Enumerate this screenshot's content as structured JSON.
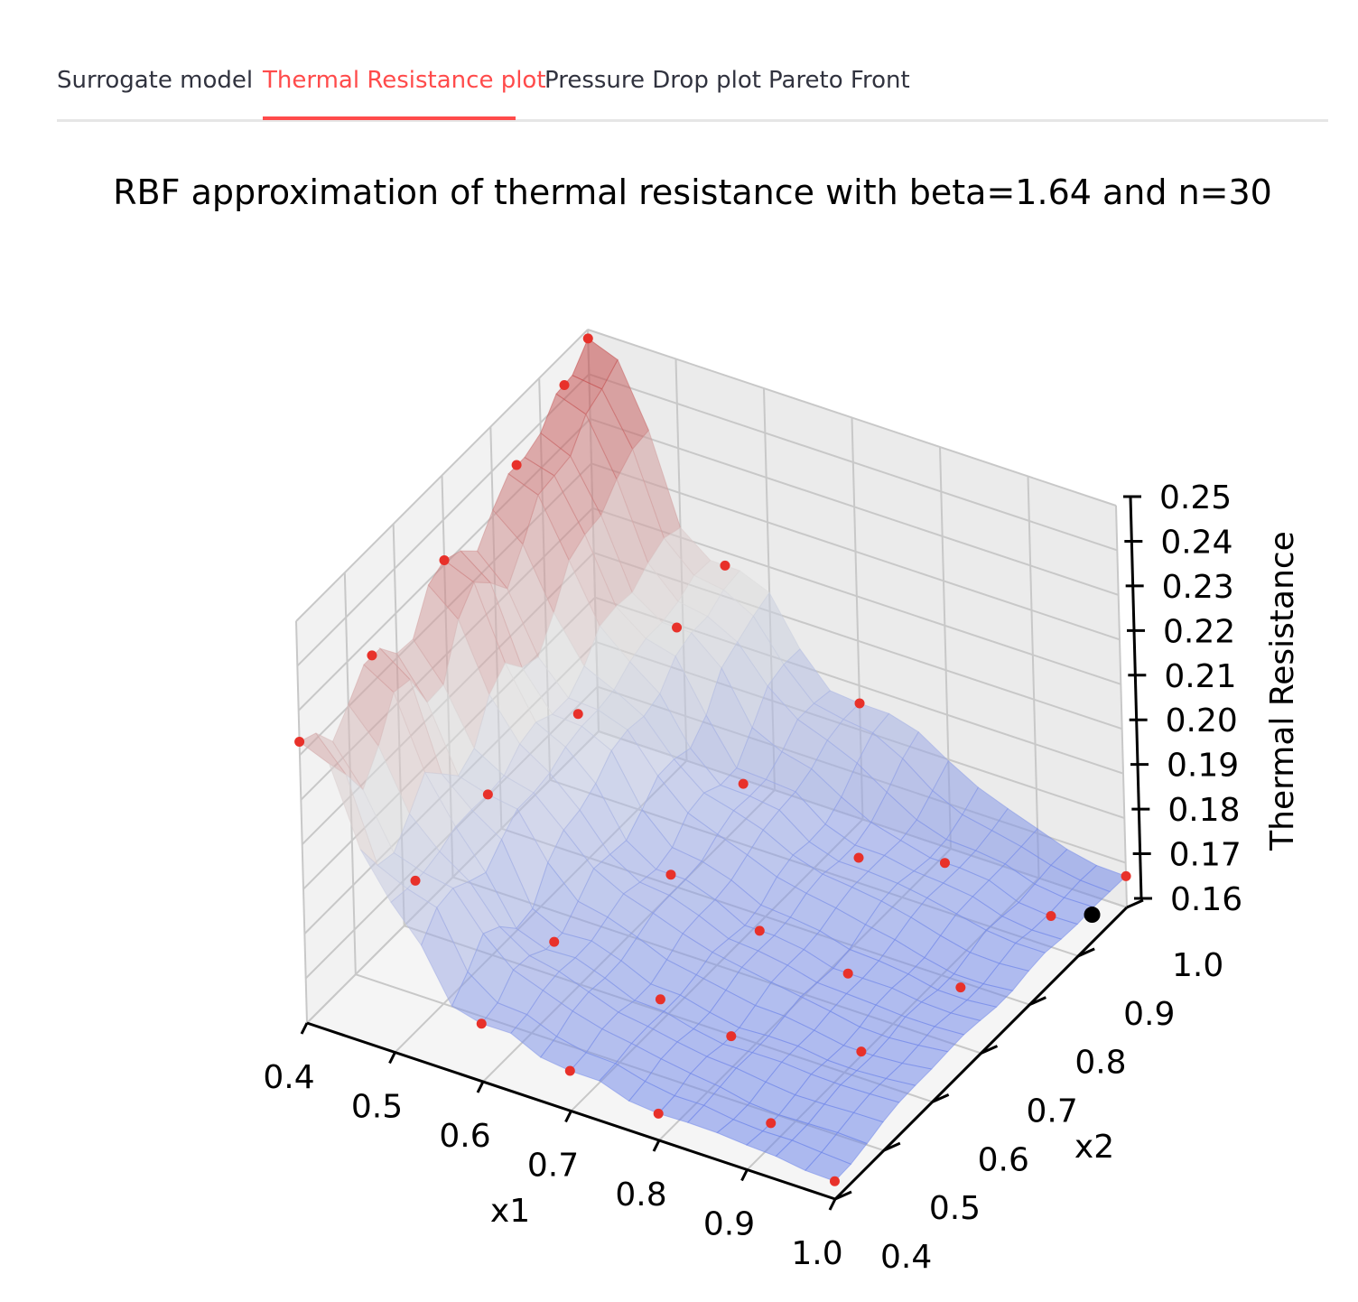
{
  "tabs": [
    {
      "label": "Surrogate model",
      "active": false
    },
    {
      "label": "Thermal Resistance plot",
      "active": true
    },
    {
      "label": "Pressure Drop plot",
      "active": false
    },
    {
      "label": "Pareto Front",
      "active": false
    }
  ],
  "colors": {
    "accent": "#ff4b4b",
    "tab_text": "#31333f",
    "point": "#e8312a",
    "best_point": "#000000",
    "surface_high": "#c44a4a",
    "surface_low": "#6f86ea"
  },
  "chart_data": {
    "type": "surface3d",
    "title": "RBF approximation of thermal resistance with beta=1.64 and n=30",
    "xlabel": "x1",
    "ylabel": "x2",
    "zlabel": "Thermal Resistance",
    "xlim": [
      0.4,
      1.0
    ],
    "ylim": [
      0.4,
      1.0
    ],
    "zlim": [
      0.16,
      0.25
    ],
    "xticks": [
      "0.4",
      "0.5",
      "0.6",
      "0.7",
      "0.8",
      "0.9",
      "1.0"
    ],
    "yticks": [
      "0.4",
      "0.5",
      "0.6",
      "0.7",
      "0.8",
      "0.9",
      "1.0"
    ],
    "zticks": [
      "0.16",
      "0.17",
      "0.18",
      "0.19",
      "0.20",
      "0.21",
      "0.22",
      "0.23",
      "0.24",
      "0.25"
    ],
    "grid": true,
    "surface_colormap": "coolwarm",
    "samples": [
      {
        "x1": 0.4,
        "x2": 0.4,
        "z": 0.223
      },
      {
        "x1": 0.4,
        "x2": 0.55,
        "z": 0.226
      },
      {
        "x1": 0.4,
        "x2": 0.7,
        "z": 0.231
      },
      {
        "x1": 0.4,
        "x2": 0.85,
        "z": 0.236
      },
      {
        "x1": 0.4,
        "x2": 1.0,
        "z": 0.248
      },
      {
        "x1": 0.4,
        "x2": 0.95,
        "z": 0.243
      },
      {
        "x1": 0.5,
        "x2": 0.45,
        "z": 0.193
      },
      {
        "x1": 0.5,
        "x2": 0.6,
        "z": 0.196
      },
      {
        "x1": 0.52,
        "x2": 0.75,
        "z": 0.199
      },
      {
        "x1": 0.55,
        "x2": 0.9,
        "z": 0.204
      },
      {
        "x1": 0.55,
        "x2": 1.0,
        "z": 0.207
      },
      {
        "x1": 0.6,
        "x2": 0.4,
        "z": 0.173
      },
      {
        "x1": 0.6,
        "x2": 0.55,
        "z": 0.175
      },
      {
        "x1": 0.65,
        "x2": 0.7,
        "z": 0.177
      },
      {
        "x1": 0.65,
        "x2": 0.85,
        "z": 0.181
      },
      {
        "x1": 0.7,
        "x2": 1.0,
        "z": 0.186
      },
      {
        "x1": 0.7,
        "x2": 0.4,
        "z": 0.169
      },
      {
        "x1": 0.72,
        "x2": 0.55,
        "z": 0.17
      },
      {
        "x1": 0.75,
        "x2": 0.7,
        "z": 0.171
      },
      {
        "x1": 0.78,
        "x2": 0.85,
        "z": 0.173
      },
      {
        "x1": 0.8,
        "x2": 0.4,
        "z": 0.166
      },
      {
        "x1": 0.8,
        "x2": 0.55,
        "z": 0.167
      },
      {
        "x1": 0.85,
        "x2": 0.7,
        "z": 0.168
      },
      {
        "x1": 0.85,
        "x2": 0.9,
        "z": 0.171
      },
      {
        "x1": 0.9,
        "x2": 0.45,
        "z": 0.165
      },
      {
        "x1": 0.92,
        "x2": 0.6,
        "z": 0.166
      },
      {
        "x1": 0.95,
        "x2": 0.75,
        "z": 0.166
      },
      {
        "x1": 0.97,
        "x2": 0.9,
        "z": 0.167
      },
      {
        "x1": 1.0,
        "x2": 0.4,
        "z": 0.164
      },
      {
        "x1": 1.0,
        "x2": 1.0,
        "z": 0.167
      }
    ],
    "best_point": {
      "x1": 1.0,
      "x2": 0.93,
      "z": 0.166
    }
  }
}
